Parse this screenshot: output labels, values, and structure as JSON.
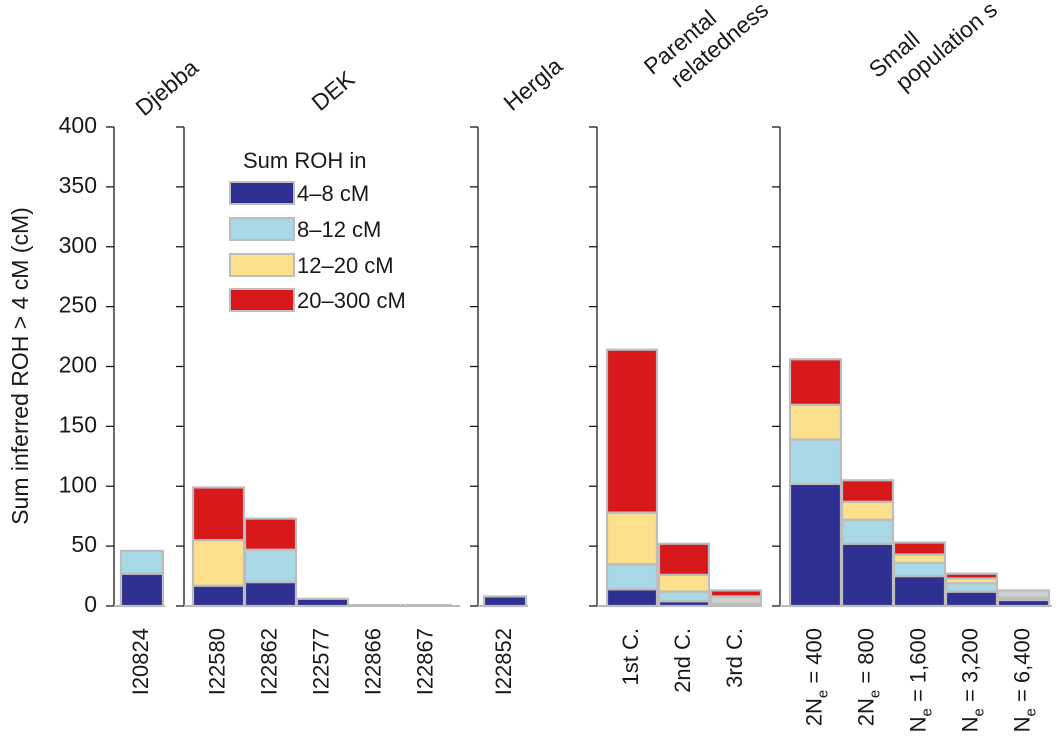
{
  "chart_data": {
    "type": "bar",
    "stacked": true,
    "ylabel": "Sum inferred ROH > 4 cM (cM)",
    "ylim": [
      0,
      400
    ],
    "yticks": [
      0,
      50,
      100,
      150,
      200,
      250,
      300,
      350,
      400
    ],
    "legend": {
      "title": "Sum ROH in",
      "placement": "top-left of DEK panel",
      "entries": [
        "4–8 cM",
        "8–12 cM",
        "12–20 cM",
        "20–300 cM"
      ]
    },
    "series_colors": [
      "#2e3192",
      "#a8d8e6",
      "#fde08c",
      "#d7191c"
    ],
    "panels": [
      {
        "title": "Djebba",
        "bars": [
          {
            "label": "I20824",
            "values": [
              27,
              19,
              0,
              0
            ]
          }
        ]
      },
      {
        "title": "DEK",
        "bars": [
          {
            "label": "I22580",
            "values": [
              17,
              0,
              38,
              44
            ]
          },
          {
            "label": "I22862",
            "values": [
              20,
              27,
              0,
              26
            ]
          },
          {
            "label": "I22577",
            "values": [
              6,
              0,
              0,
              0
            ]
          },
          {
            "label": "I22866",
            "values": [
              0,
              0,
              0,
              0
            ]
          },
          {
            "label": "I22867",
            "values": [
              0,
              0,
              0,
              0
            ]
          }
        ]
      },
      {
        "title": "Hergla",
        "bars": [
          {
            "label": "I22852",
            "values": [
              8,
              0,
              0,
              0
            ]
          }
        ]
      },
      {
        "title_lines": [
          "Parental",
          "relatedness"
        ],
        "bars": [
          {
            "label": "1st C.",
            "values": [
              14,
              21,
              43,
              136
            ]
          },
          {
            "label": "2nd C.",
            "values": [
              4,
              8,
              14,
              26
            ]
          },
          {
            "label": "3rd C.",
            "values": [
              1,
              1,
              6,
              5
            ],
            "colors": [
              "#2e3192",
              "#a8d8e6",
              "#cfcfcf",
              "#d7191c"
            ]
          }
        ]
      },
      {
        "title_lines": [
          "Small",
          "population s"
        ],
        "bars": [
          {
            "label_prefix": "2N",
            "label_sub": "e",
            "label_suffix": " = 400",
            "values": [
              102,
              37,
              29,
              38
            ]
          },
          {
            "label_prefix": "2N",
            "label_sub": "e",
            "label_suffix": " = 800",
            "values": [
              52,
              20,
              15,
              18
            ]
          },
          {
            "label_prefix": "N",
            "label_sub": "e",
            "label_suffix": " = 1,600",
            "values": [
              25,
              11,
              7,
              10
            ]
          },
          {
            "label_prefix": "N",
            "label_sub": "e",
            "label_suffix": " = 3,200",
            "values": [
              12,
              7,
              4,
              4
            ]
          },
          {
            "label_prefix": "N",
            "label_sub": "e",
            "label_suffix": " = 6,400",
            "values": [
              5,
              2,
              6,
              0
            ],
            "colors": [
              "#2e3192",
              "#a8d8e6",
              "#cfcfcf",
              "#d7191c"
            ]
          }
        ]
      }
    ]
  }
}
